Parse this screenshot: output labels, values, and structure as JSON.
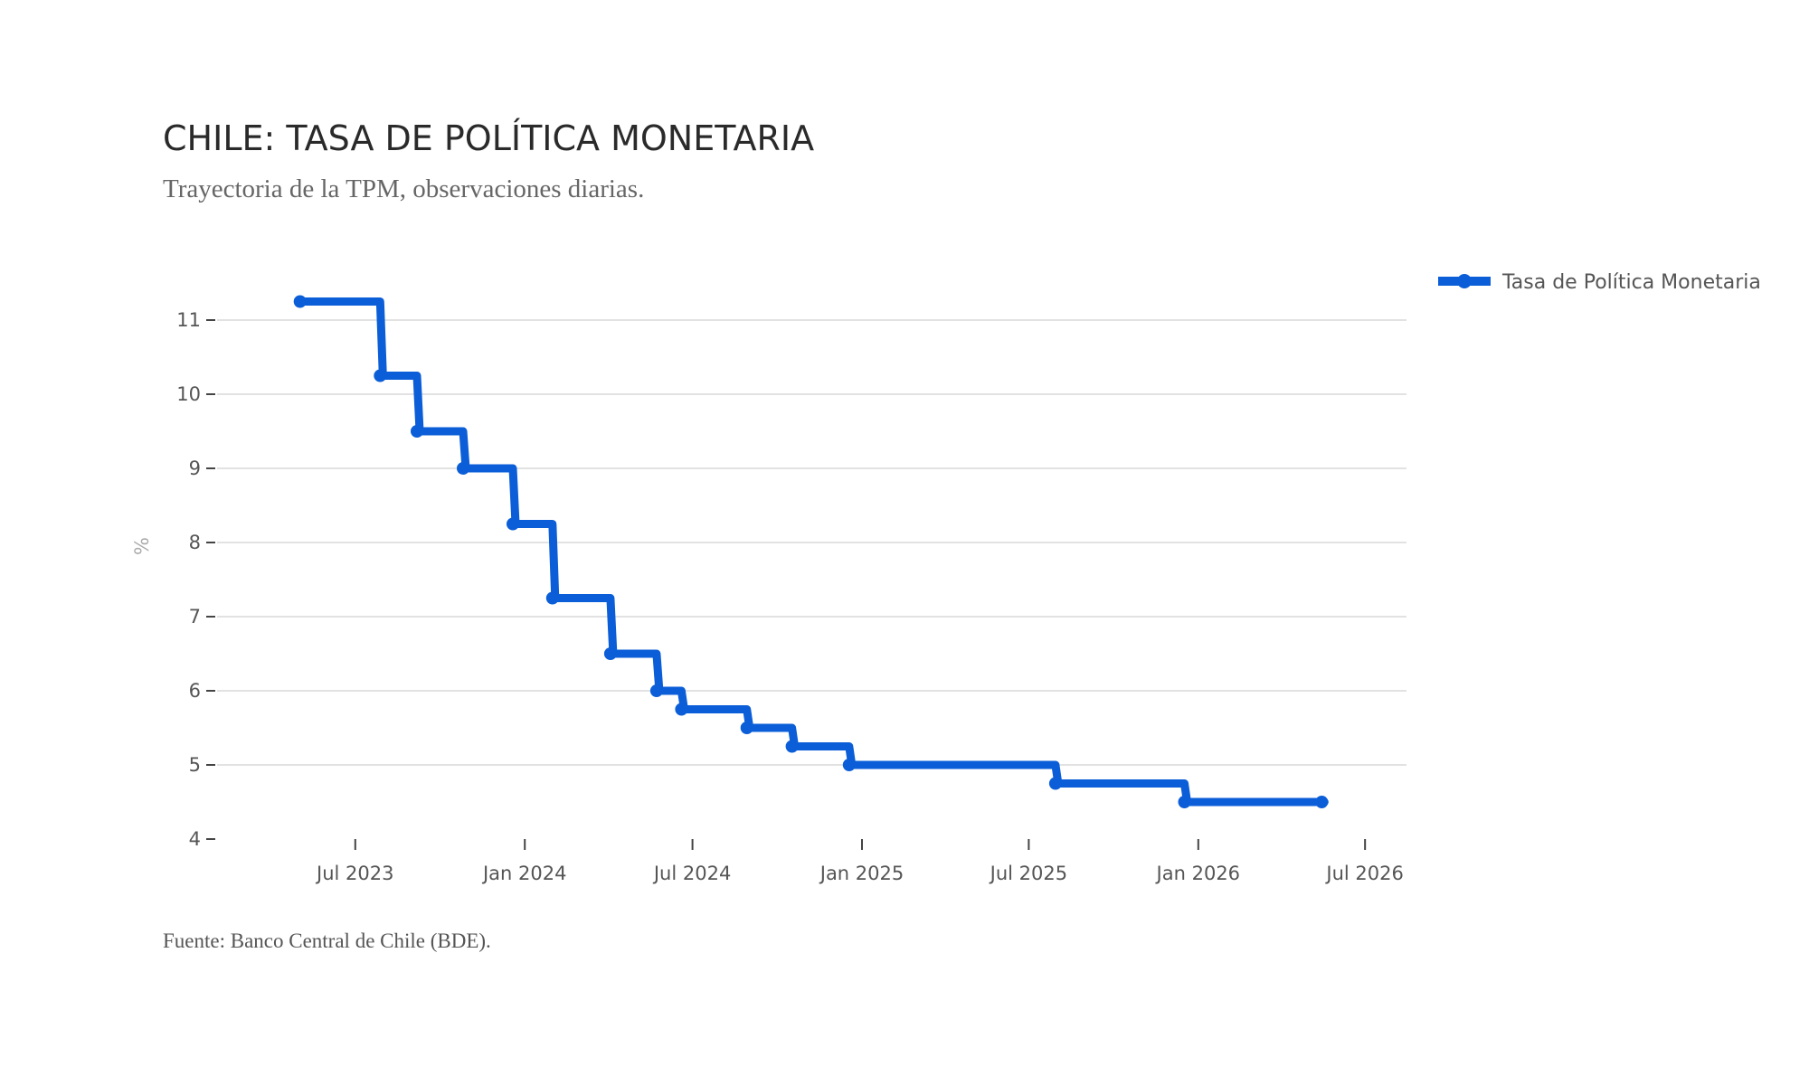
{
  "chart_data": {
    "type": "line",
    "title": "CHILE: TASA DE POLÍTICA MONETARIA",
    "subtitle": "Trayectoria de la TPM, observaciones diarias.",
    "source": "Fuente: Banco Central de Chile (BDE).",
    "ylabel": "%",
    "xlabel": "",
    "ylim": [
      4,
      11.5
    ],
    "xlim": [
      "2023-02-01",
      "2026-08-15"
    ],
    "y_ticks": [
      4,
      5,
      6,
      7,
      8,
      9,
      10,
      11
    ],
    "y_tick_labels": [
      "4",
      "5",
      "6",
      "7",
      "8",
      "9",
      "10",
      "11"
    ],
    "x_ticks": [
      "2023-07-01",
      "2024-01-01",
      "2024-07-01",
      "2025-01-01",
      "2025-07-01",
      "2026-01-01",
      "2026-07-01"
    ],
    "x_tick_labels": [
      "Jul 2023",
      "Jan 2024",
      "Jul 2024",
      "Jan 2025",
      "Jul 2025",
      "Jan 2026",
      "Jul 2026"
    ],
    "grid": "horizontal",
    "legend_position": "right",
    "line_color": "#0b5ed7",
    "series": [
      {
        "name": "Tasa de Política Monetaria",
        "x": [
          "2023-05-02",
          "2023-07-28",
          "2023-09-06",
          "2023-10-26",
          "2023-12-19",
          "2024-01-31",
          "2024-04-03",
          "2024-05-23",
          "2024-06-19",
          "2024-08-29",
          "2024-10-17",
          "2024-12-18",
          "2025-07-30",
          "2025-12-17",
          "2026-05-15"
        ],
        "y": [
          11.25,
          10.25,
          9.5,
          9.0,
          8.25,
          7.25,
          6.5,
          6.0,
          5.75,
          5.5,
          5.25,
          5.0,
          4.75,
          4.5,
          4.5
        ]
      }
    ]
  }
}
